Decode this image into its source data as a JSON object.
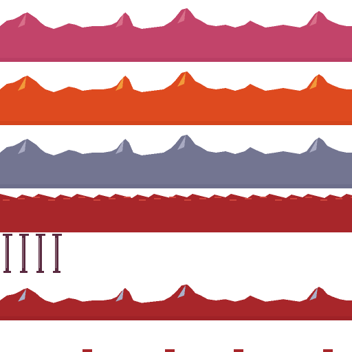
{
  "sheet": {
    "type": "sprite-sheet",
    "background": "#ffffff",
    "tiles": [
      {
        "name": "mountain-strip-pink",
        "fill": "#c2446a",
        "highlight": "#d9708a",
        "shade": "#a8355a"
      },
      {
        "name": "mountain-strip-orange",
        "fill": "#de4a1f",
        "highlight": "#f29a3a",
        "shade": "#c23c16"
      },
      {
        "name": "mountain-strip-slate",
        "fill": "#737591",
        "highlight": "#a9aac2",
        "shade": "#5f6180"
      },
      {
        "name": "mountain-strip-red-flat",
        "fill": "#a8262a",
        "highlight": "#d0463e",
        "shade": "#8e1e22"
      },
      {
        "name": "pillar-set",
        "fill": "#5a2a40",
        "highlight": "#ffffff",
        "count": 4
      },
      {
        "name": "mountain-strip-red-snow",
        "fill": "#a8262a",
        "highlight": "#aab0c8",
        "shade": "#8e1e22"
      }
    ]
  }
}
